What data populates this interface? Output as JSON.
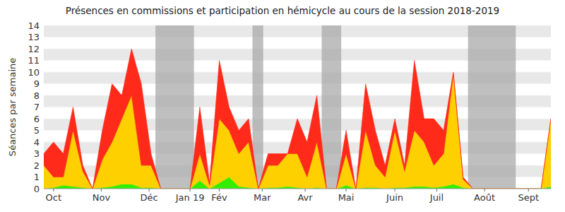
{
  "chart_data": {
    "type": "area",
    "title": "Présences en commissions et participation en hémicycle au cours de la session 2018-2019",
    "y_label": "Séances par semaine",
    "stacked": true,
    "grid": true,
    "x": [
      0,
      1,
      2,
      3,
      4,
      5,
      6,
      7,
      8,
      9,
      10,
      11,
      12,
      13,
      14,
      15,
      16,
      17,
      18,
      19,
      20,
      21,
      22,
      23,
      24,
      25,
      26,
      27,
      28,
      29,
      30,
      31,
      32,
      33,
      34,
      35,
      36,
      37,
      38,
      39,
      40,
      41,
      42,
      43,
      44,
      45,
      46,
      47,
      48,
      49,
      50,
      51,
      52
    ],
    "xlim": [
      0,
      52
    ],
    "xticks": [
      {
        "value": 1,
        "label": "Oct"
      },
      {
        "value": 5.9,
        "label": "Nov"
      },
      {
        "value": 10.8,
        "label": "Déc"
      },
      {
        "value": 15,
        "label": "Jan 19"
      },
      {
        "value": 18,
        "label": "Fév"
      },
      {
        "value": 22.4,
        "label": "Mar"
      },
      {
        "value": 26.8,
        "label": "Avr"
      },
      {
        "value": 31,
        "label": "Mai"
      },
      {
        "value": 36,
        "label": "Juin"
      },
      {
        "value": 40.3,
        "label": "Juil"
      },
      {
        "value": 45.2,
        "label": "Août"
      },
      {
        "value": 49.7,
        "label": "Sept"
      }
    ],
    "ylim": [
      0,
      14
    ],
    "yticks": [
      0,
      1,
      2,
      3,
      4,
      5,
      6,
      7,
      8,
      9,
      10,
      11,
      12,
      13,
      14
    ],
    "shaded_ranges": [
      [
        11.45,
        15.4
      ],
      [
        21.4,
        22.5
      ],
      [
        28.5,
        30.5
      ],
      [
        43.5,
        48.4
      ]
    ],
    "series": [
      {
        "color": "#33ee00",
        "values": [
          0,
          0.1,
          0.3,
          0.2,
          0.1,
          0,
          0.1,
          0.2,
          0.4,
          0.4,
          0.1,
          0.1,
          0,
          0,
          0,
          0,
          0.7,
          0,
          0.5,
          1,
          0.2,
          0.1,
          0,
          0.1,
          0.1,
          0.2,
          0.1,
          0,
          0.1,
          0,
          0,
          0.3,
          0,
          0.1,
          0.1,
          0,
          0.1,
          0.1,
          0.2,
          0.2,
          0.1,
          0.2,
          0.4,
          0.1,
          0,
          0,
          0,
          0,
          0,
          0,
          0,
          0,
          0.2
        ]
      },
      {
        "color": "#ffd000",
        "values": [
          2,
          0.9,
          0.7,
          4.8,
          1.4,
          0,
          2.4,
          3.8,
          5.6,
          7.6,
          1.9,
          1.9,
          0,
          0,
          0,
          0,
          2.3,
          0.3,
          5.5,
          4,
          2.8,
          3.9,
          0,
          1.9,
          1.9,
          2.8,
          2.9,
          1,
          3.9,
          0,
          0,
          2.7,
          0,
          4.9,
          1.9,
          1,
          4.9,
          1.4,
          4.8,
          3.8,
          1.9,
          2.8,
          9.4,
          0.7,
          0,
          0,
          0,
          0,
          0,
          0,
          0,
          0,
          5.8
        ]
      },
      {
        "color": "#ff2a1a",
        "values": [
          1,
          3,
          2,
          2,
          0.5,
          0,
          2.5,
          5,
          2,
          4,
          7,
          1,
          0,
          0,
          0,
          0,
          4,
          0.2,
          5,
          2,
          2,
          2,
          0,
          1,
          1,
          0,
          3,
          3,
          4,
          0,
          0,
          2,
          0,
          4,
          3,
          1,
          1,
          0.5,
          6,
          2,
          4,
          2,
          0.2,
          0.2,
          0,
          0,
          0,
          0,
          0,
          0,
          0,
          0,
          0
        ]
      }
    ]
  }
}
